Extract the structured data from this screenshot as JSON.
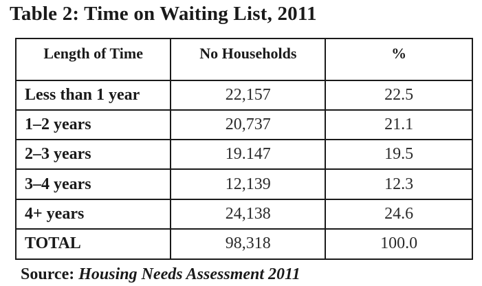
{
  "title": "Table 2:  Time on Waiting List, 2011",
  "table": {
    "headers": [
      "Length of Time",
      "No Households",
      "%"
    ],
    "rows": [
      {
        "label": "Less than 1 year",
        "households": "22,157",
        "percent": "22.5"
      },
      {
        "label": "1–2 years",
        "households": "20,737",
        "percent": "21.1"
      },
      {
        "label": "2–3 years",
        "households": "19.147",
        "percent": "19.5"
      },
      {
        "label": "3–4 years",
        "households": "12,139",
        "percent": "12.3"
      },
      {
        "label": "4+ years",
        "households": "24,138",
        "percent": "24.6"
      },
      {
        "label": "TOTAL",
        "households": "98,318",
        "percent": "100.0"
      }
    ]
  },
  "source": {
    "prefix": "Source: ",
    "text": "Housing Needs Assessment 2011"
  }
}
